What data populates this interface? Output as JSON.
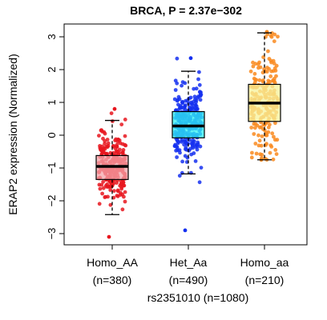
{
  "chart_data": {
    "type": "box",
    "title": "BRCA, P = 2.37e−302",
    "ylabel": "ERAP2 expression (Normalized)",
    "xlabel": "rs2351010 (n=1080)",
    "ylim": [
      -3.2,
      3.3
    ],
    "yticks": [
      -3,
      -2,
      -1,
      0,
      1,
      2,
      3
    ],
    "ytick_labels": [
      "−3",
      "−2",
      "−1",
      "0",
      "1",
      "2",
      "3"
    ],
    "grid": false,
    "groups": [
      {
        "name": "Homo_AA",
        "count_label": "(n=380)",
        "n": 380,
        "box_color": "#f4a6ab",
        "point_color": "#e8161e",
        "q1": -1.35,
        "median": -0.95,
        "q3": -0.62,
        "whisker_low": -2.42,
        "whisker_high": 0.45,
        "min": -3.1,
        "max": 0.8
      },
      {
        "name": "Het_Aa",
        "count_label": "(n=490)",
        "n": 490,
        "box_color": "#2ff2f2",
        "point_color": "#1530f0",
        "q1": -0.08,
        "median": 0.28,
        "q3": 0.72,
        "whisker_low": -1.18,
        "whisker_high": 1.95,
        "min": -2.9,
        "max": 2.35
      },
      {
        "name": "Homo_aa",
        "count_label": "(n=210)",
        "n": 210,
        "box_color": "#f7f19a",
        "point_color": "#f98a1f",
        "q1": 0.42,
        "median": 0.98,
        "q3": 1.55,
        "whisker_low": -0.75,
        "whisker_high": 3.12,
        "min": -0.75,
        "max": 3.15
      }
    ]
  }
}
